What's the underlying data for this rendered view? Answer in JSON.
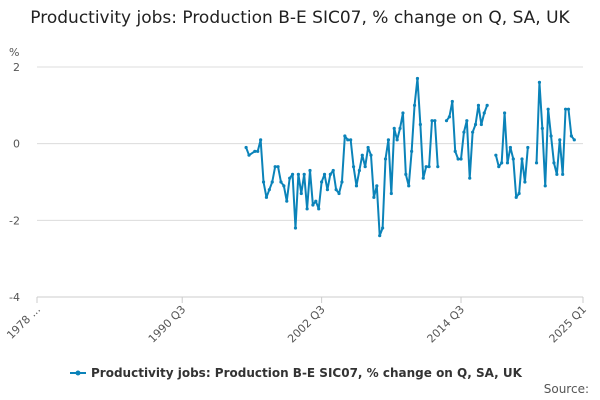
{
  "chart_data": {
    "type": "line",
    "title": "Productivity jobs: Production B-E SIC07, % change on Q, SA, UK",
    "ylabel": "%",
    "ylim": [
      -4,
      2
    ],
    "yticks": [
      2,
      0,
      -2,
      -4
    ],
    "x_tick_labels": [
      "1978 ...",
      "1990 Q3",
      "2002 Q3",
      "2014 Q3",
      "2025 Q1"
    ],
    "x_tick_positions": [
      1978.0,
      1990.5,
      2002.5,
      2014.5,
      2025.0
    ],
    "x_range": [
      1978.0,
      2025.0
    ],
    "grid": true,
    "legend_position": "bottom",
    "source_label": "Source:",
    "color": "#0b83b9",
    "series": [
      {
        "name": "Productivity jobs: Production B-E SIC07, % change on Q, SA, UK",
        "segments": [
          [
            [
              1996.0,
              -0.1
            ],
            [
              1996.25,
              -0.3
            ],
            [
              1996.75,
              -0.2
            ],
            [
              1997.0,
              -0.2
            ],
            [
              1997.25,
              0.1
            ],
            [
              1997.5,
              -1.0
            ],
            [
              1997.75,
              -1.4
            ],
            [
              1998.0,
              -1.2
            ],
            [
              1998.25,
              -1.0
            ],
            [
              1998.5,
              -0.6
            ],
            [
              1998.75,
              -0.6
            ],
            [
              1999.0,
              -1.0
            ],
            [
              1999.25,
              -1.1
            ],
            [
              1999.5,
              -1.5
            ],
            [
              1999.75,
              -0.9
            ],
            [
              2000.0,
              -0.8
            ],
            [
              2000.25,
              -2.2
            ],
            [
              2000.5,
              -0.8
            ],
            [
              2000.75,
              -1.3
            ],
            [
              2001.0,
              -0.8
            ],
            [
              2001.25,
              -1.7
            ],
            [
              2001.5,
              -0.7
            ],
            [
              2001.75,
              -1.6
            ],
            [
              2002.0,
              -1.5
            ],
            [
              2002.25,
              -1.7
            ],
            [
              2002.5,
              -1.0
            ],
            [
              2002.75,
              -0.8
            ],
            [
              2003.0,
              -1.2
            ],
            [
              2003.25,
              -0.8
            ],
            [
              2003.5,
              -0.7
            ],
            [
              2003.75,
              -1.2
            ],
            [
              2004.0,
              -1.3
            ],
            [
              2004.25,
              -1.0
            ],
            [
              2004.5,
              0.2
            ],
            [
              2004.75,
              0.1
            ],
            [
              2005.0,
              0.1
            ],
            [
              2005.25,
              -0.6
            ],
            [
              2005.5,
              -1.1
            ],
            [
              2005.75,
              -0.7
            ],
            [
              2006.0,
              -0.3
            ],
            [
              2006.25,
              -0.6
            ],
            [
              2006.5,
              -0.1
            ],
            [
              2006.75,
              -0.3
            ],
            [
              2007.0,
              -1.4
            ],
            [
              2007.25,
              -1.1
            ],
            [
              2007.5,
              -2.4
            ],
            [
              2007.75,
              -2.2
            ],
            [
              2008.0,
              -0.4
            ],
            [
              2008.25,
              0.1
            ],
            [
              2008.5,
              -1.3
            ],
            [
              2008.75,
              0.4
            ],
            [
              2009.0,
              0.1
            ],
            [
              2009.25,
              0.4
            ],
            [
              2009.5,
              0.8
            ],
            [
              2009.75,
              -0.8
            ],
            [
              2010.0,
              -1.1
            ],
            [
              2010.25,
              -0.2
            ],
            [
              2010.5,
              1.0
            ],
            [
              2010.75,
              1.7
            ],
            [
              2011.0,
              0.5
            ],
            [
              2011.25,
              -0.9
            ],
            [
              2011.5,
              -0.6
            ],
            [
              2011.75,
              -0.6
            ],
            [
              2012.0,
              0.6
            ],
            [
              2012.25,
              0.6
            ],
            [
              2012.5,
              -0.6
            ]
          ],
          [
            [
              2013.25,
              0.6
            ],
            [
              2013.5,
              0.7
            ],
            [
              2013.75,
              1.1
            ],
            [
              2014.0,
              -0.2
            ],
            [
              2014.25,
              -0.4
            ],
            [
              2014.5,
              -0.4
            ],
            [
              2014.75,
              0.3
            ],
            [
              2015.0,
              0.6
            ],
            [
              2015.25,
              -0.9
            ],
            [
              2015.5,
              0.3
            ],
            [
              2015.75,
              0.5
            ],
            [
              2016.0,
              1.0
            ],
            [
              2016.25,
              0.5
            ],
            [
              2016.5,
              0.8
            ],
            [
              2016.75,
              1.0
            ]
          ],
          [
            [
              2017.5,
              -0.3
            ],
            [
              2017.75,
              -0.6
            ],
            [
              2018.0,
              -0.5
            ],
            [
              2018.25,
              0.8
            ],
            [
              2018.5,
              -0.5
            ],
            [
              2018.75,
              -0.1
            ],
            [
              2019.0,
              -0.4
            ],
            [
              2019.25,
              -1.4
            ],
            [
              2019.5,
              -1.3
            ],
            [
              2019.75,
              -0.4
            ],
            [
              2020.0,
              -1.0
            ],
            [
              2020.25,
              -0.1
            ]
          ],
          [
            [
              2021.0,
              -0.5
            ],
            [
              2021.25,
              1.6
            ],
            [
              2021.5,
              0.4
            ],
            [
              2021.75,
              -1.1
            ],
            [
              2022.0,
              0.9
            ],
            [
              2022.25,
              0.2
            ],
            [
              2022.5,
              -0.5
            ],
            [
              2022.75,
              -0.8
            ],
            [
              2023.0,
              0.1
            ],
            [
              2023.25,
              -0.8
            ],
            [
              2023.5,
              0.9
            ],
            [
              2023.75,
              0.9
            ],
            [
              2024.0,
              0.2
            ],
            [
              2024.25,
              0.1
            ]
          ]
        ]
      }
    ]
  }
}
